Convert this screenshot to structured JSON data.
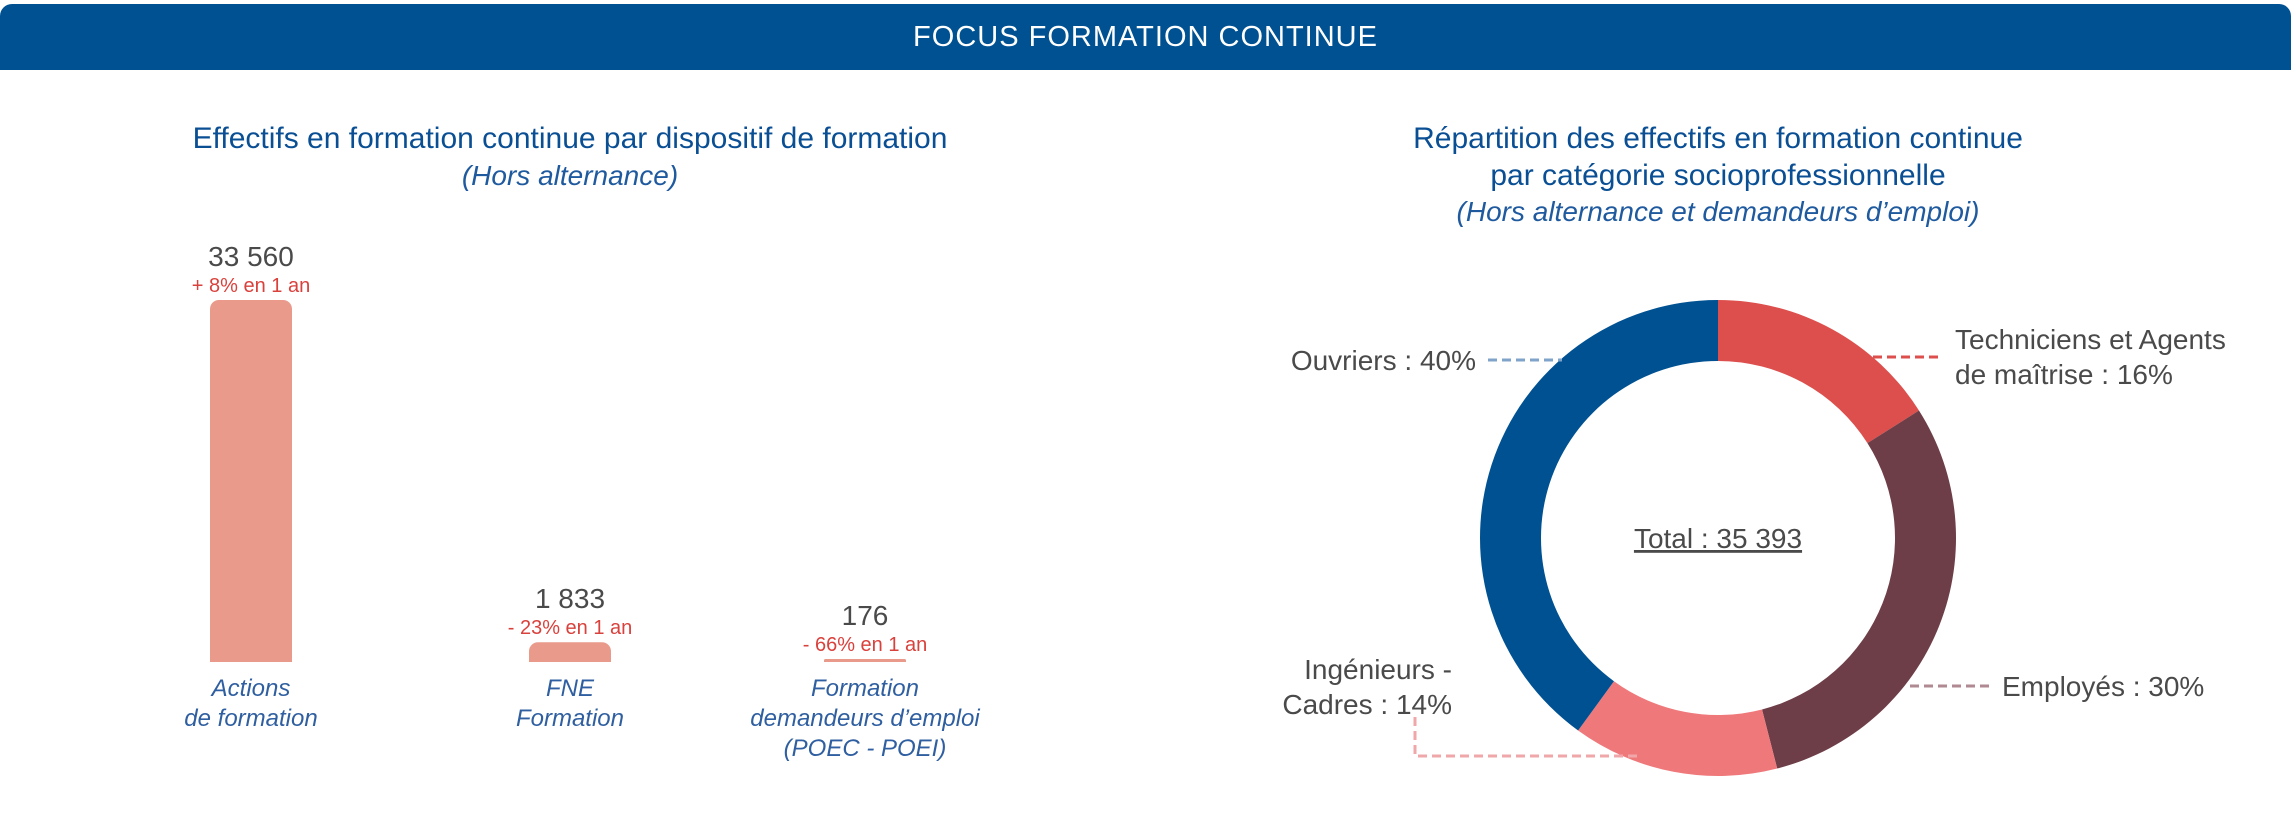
{
  "banner": {
    "title": "FOCUS FORMATION CONTINUE"
  },
  "colors": {
    "banner": "#005192",
    "title": "#0a4f94",
    "bar": "#e99a8a",
    "change_negative_positive": "#d9413c",
    "category_label": "#2f5fa0",
    "value_text": "#4a4a4a",
    "ouvriers": "#005192",
    "techniciens": "#dc4f4c",
    "employes": "#6e3e48",
    "ingenieurs": "#ef787b"
  },
  "chart_data": [
    {
      "type": "bar",
      "title": "Effectifs en formation continue par dispositif de formation",
      "subtitle": "(Hors alternance)",
      "categories": [
        [
          "Actions",
          "de formation"
        ],
        [
          "FNE",
          "Formation"
        ],
        [
          "Formation",
          "demandeurs d’emploi",
          "(POEC - POEI)"
        ]
      ],
      "values": [
        33560,
        1833,
        176
      ],
      "value_labels": [
        "33 560",
        "1 833",
        "176"
      ],
      "change_labels": [
        "+ 8% en 1 an",
        "- 23% en 1 an",
        "- 66% en 1 an"
      ],
      "ylim": [
        0,
        33560
      ],
      "grid": false
    },
    {
      "type": "pie",
      "donut": true,
      "title": [
        "Répartition des effectifs en formation continue",
        "par catégorie socioprofessionnelle"
      ],
      "subtitle": "(Hors alternance et demandeurs d’emploi)",
      "center_label": "Total : 35 393",
      "slices": [
        {
          "key": "techniciens",
          "label": [
            "Techniciens et Agents",
            "de maîtrise : 16%"
          ],
          "value": 16
        },
        {
          "key": "employes",
          "label": [
            "Employés : 30%"
          ],
          "value": 30
        },
        {
          "key": "ingenieurs",
          "label": [
            "Ingénieurs -",
            "Cadres : 14%"
          ],
          "value": 14
        },
        {
          "key": "ouvriers",
          "label": [
            "Ouvriers : 40%"
          ],
          "value": 40
        }
      ]
    }
  ]
}
